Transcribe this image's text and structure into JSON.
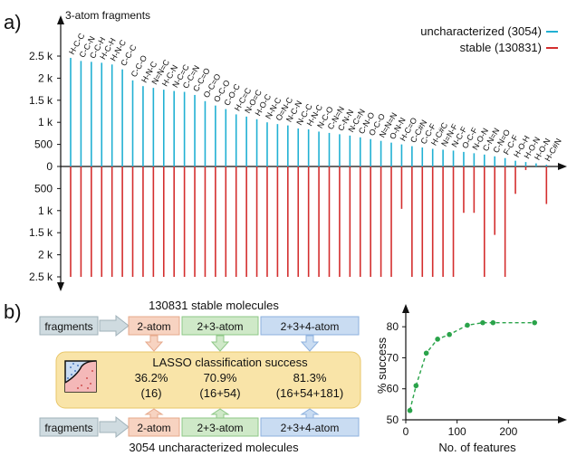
{
  "chart_data": [
    {
      "panel_label": "a)",
      "type": "bar",
      "title": "3-atom fragments",
      "ylabel": "",
      "xlabel": "",
      "ylim": [
        -2500,
        2500
      ],
      "yticks": [
        2500,
        2000,
        1500,
        1000,
        500,
        0,
        -500,
        -1000,
        -1500,
        -2000,
        -2500
      ],
      "ytick_labels": [
        "2.5 k",
        "2 k",
        "1.5 k",
        "1 k",
        "500",
        "0",
        "500",
        "1 k",
        "1.5 k",
        "2 k",
        "2.5 k"
      ],
      "legend_position": "top-right",
      "categories": [
        "H-C-C",
        "C-C-N",
        "C-C-H",
        "H-C-H",
        "H-N-C",
        "C-C-C",
        "C-C-O",
        "H-N-C",
        "N=N=C",
        "H-C-N",
        "N-C=C",
        "C-C=N",
        "C-C=O",
        "O-C=O",
        "O-C-O",
        "C-O-C",
        "H-C=C",
        "N-O=C",
        "H-O-C",
        "N-N-C",
        "O=N-C",
        "N-C-N",
        "N-C-C",
        "H-N-C",
        "N-C-O",
        "C-N=N",
        "C-N-N",
        "N-C=N",
        "C-N-O",
        "O-C-O",
        "N=N=N",
        "O-N-N",
        "H-C=O",
        "C-C#N",
        "C-C-F",
        "H-C#C",
        "N=N-F",
        "N-C-F",
        "O-C-F",
        "N-O-N",
        "C-N=N",
        "C-N=O",
        "F-C-F",
        "H-O-H",
        "H-O-N",
        "H-O-N",
        "H-C#N"
      ],
      "series": [
        {
          "name": "uncharacterized (3054)",
          "color": "#21b0d3",
          "values": [
            2460,
            2390,
            2370,
            2350,
            2310,
            2200,
            1950,
            1820,
            1780,
            1740,
            1710,
            1690,
            1620,
            1480,
            1380,
            1300,
            1180,
            1130,
            1070,
            1000,
            960,
            930,
            860,
            840,
            790,
            760,
            730,
            700,
            660,
            620,
            580,
            540,
            500,
            460,
            430,
            400,
            380,
            360,
            330,
            300,
            270,
            230,
            190,
            130,
            100,
            70,
            40
          ]
        },
        {
          "name": "stable (130831)",
          "color": "#d42e2e",
          "values": [
            2500,
            2500,
            2500,
            2500,
            2500,
            2500,
            2500,
            2500,
            2500,
            2500,
            2500,
            2500,
            2500,
            2500,
            2500,
            2500,
            2500,
            2500,
            2500,
            2500,
            2500,
            2500,
            2500,
            2500,
            2500,
            2500,
            2500,
            2500,
            2500,
            2500,
            2500,
            2500,
            960,
            2500,
            2500,
            2500,
            2500,
            2500,
            1050,
            1050,
            2500,
            1550,
            2500,
            620,
            80,
            0,
            850
          ]
        }
      ],
      "legend_entries": [
        "uncharacterized (3054)",
        "stable (130831)"
      ]
    },
    {
      "panel_label": "b)",
      "type": "line",
      "title": "",
      "xlabel": "No. of features",
      "ylabel": "% success",
      "xlim": [
        0,
        300
      ],
      "ylim": [
        50,
        85
      ],
      "xticks": [
        0,
        100,
        200
      ],
      "yticks": [
        50,
        60,
        70,
        80
      ],
      "grid": false,
      "line_color": "#2aa34a",
      "series": [
        {
          "name": "",
          "x": [
            8,
            20,
            40,
            62,
            85,
            120,
            150,
            170,
            251
          ],
          "y": [
            53,
            61,
            71.5,
            76,
            77.5,
            80.5,
            81.3,
            81.3,
            81.3
          ]
        }
      ]
    }
  ],
  "diagram": {
    "top_caption": "130831 stable molecules",
    "bottom_caption": "3054 uncharacterized molecules",
    "fragments_label": "fragments",
    "stage_labels": [
      "2-atom",
      "2+3-atom",
      "2+3+4-atom"
    ],
    "lasso_title": "LASSO classification success",
    "results": [
      {
        "percent": "36.2%",
        "features": "(16)"
      },
      {
        "percent": "70.9%",
        "features": "(16+54)"
      },
      {
        "percent": "81.3%",
        "features": "(16+54+181)"
      }
    ],
    "colors": {
      "fragments_box": "#cfdbe0",
      "stage_1": "#f7d3c1",
      "stage_2": "#cfe9c8",
      "stage_3": "#c9dcf2",
      "lasso_box": "#f9e4a8"
    }
  }
}
